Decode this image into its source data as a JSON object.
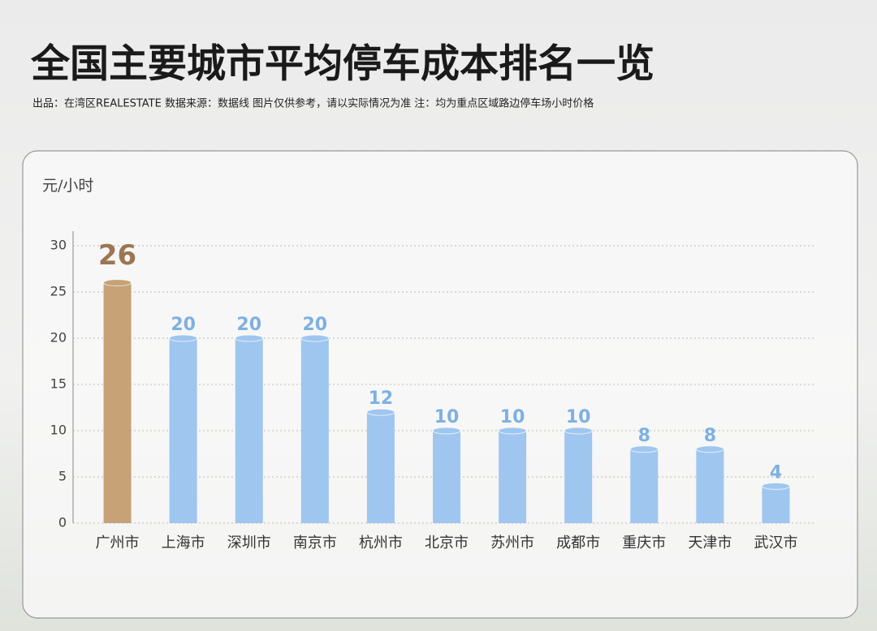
{
  "chart_data": {
    "type": "bar",
    "title": "全国主要城市平均停车成本排名一览",
    "subtitle": "出品：在湾区REALESTATE  数据来源：数据线 图片仅供参考，请以实际情况为准 注：均为重点区域路边停车场小时价格",
    "y_label": "元/小时",
    "categories": [
      "广州市",
      "上海市",
      "深圳市",
      "南京市",
      "杭州市",
      "北京市",
      "苏州市",
      "成都市",
      "重庆市",
      "天津市",
      "武汉市"
    ],
    "values": [
      26,
      20,
      20,
      20,
      12,
      10,
      10,
      10,
      8,
      8,
      4
    ],
    "colors": [
      "#c6a276",
      "#9fc6ef",
      "#9fc6ef",
      "#9fc6ef",
      "#9fc6ef",
      "#9fc6ef",
      "#9fc6ef",
      "#9fc6ef",
      "#9fc6ef",
      "#9fc6ef",
      "#9fc6ef"
    ],
    "ylim": [
      0,
      30
    ],
    "yticks": [
      0,
      5,
      10,
      15,
      20,
      25,
      30
    ],
    "grid": true
  }
}
